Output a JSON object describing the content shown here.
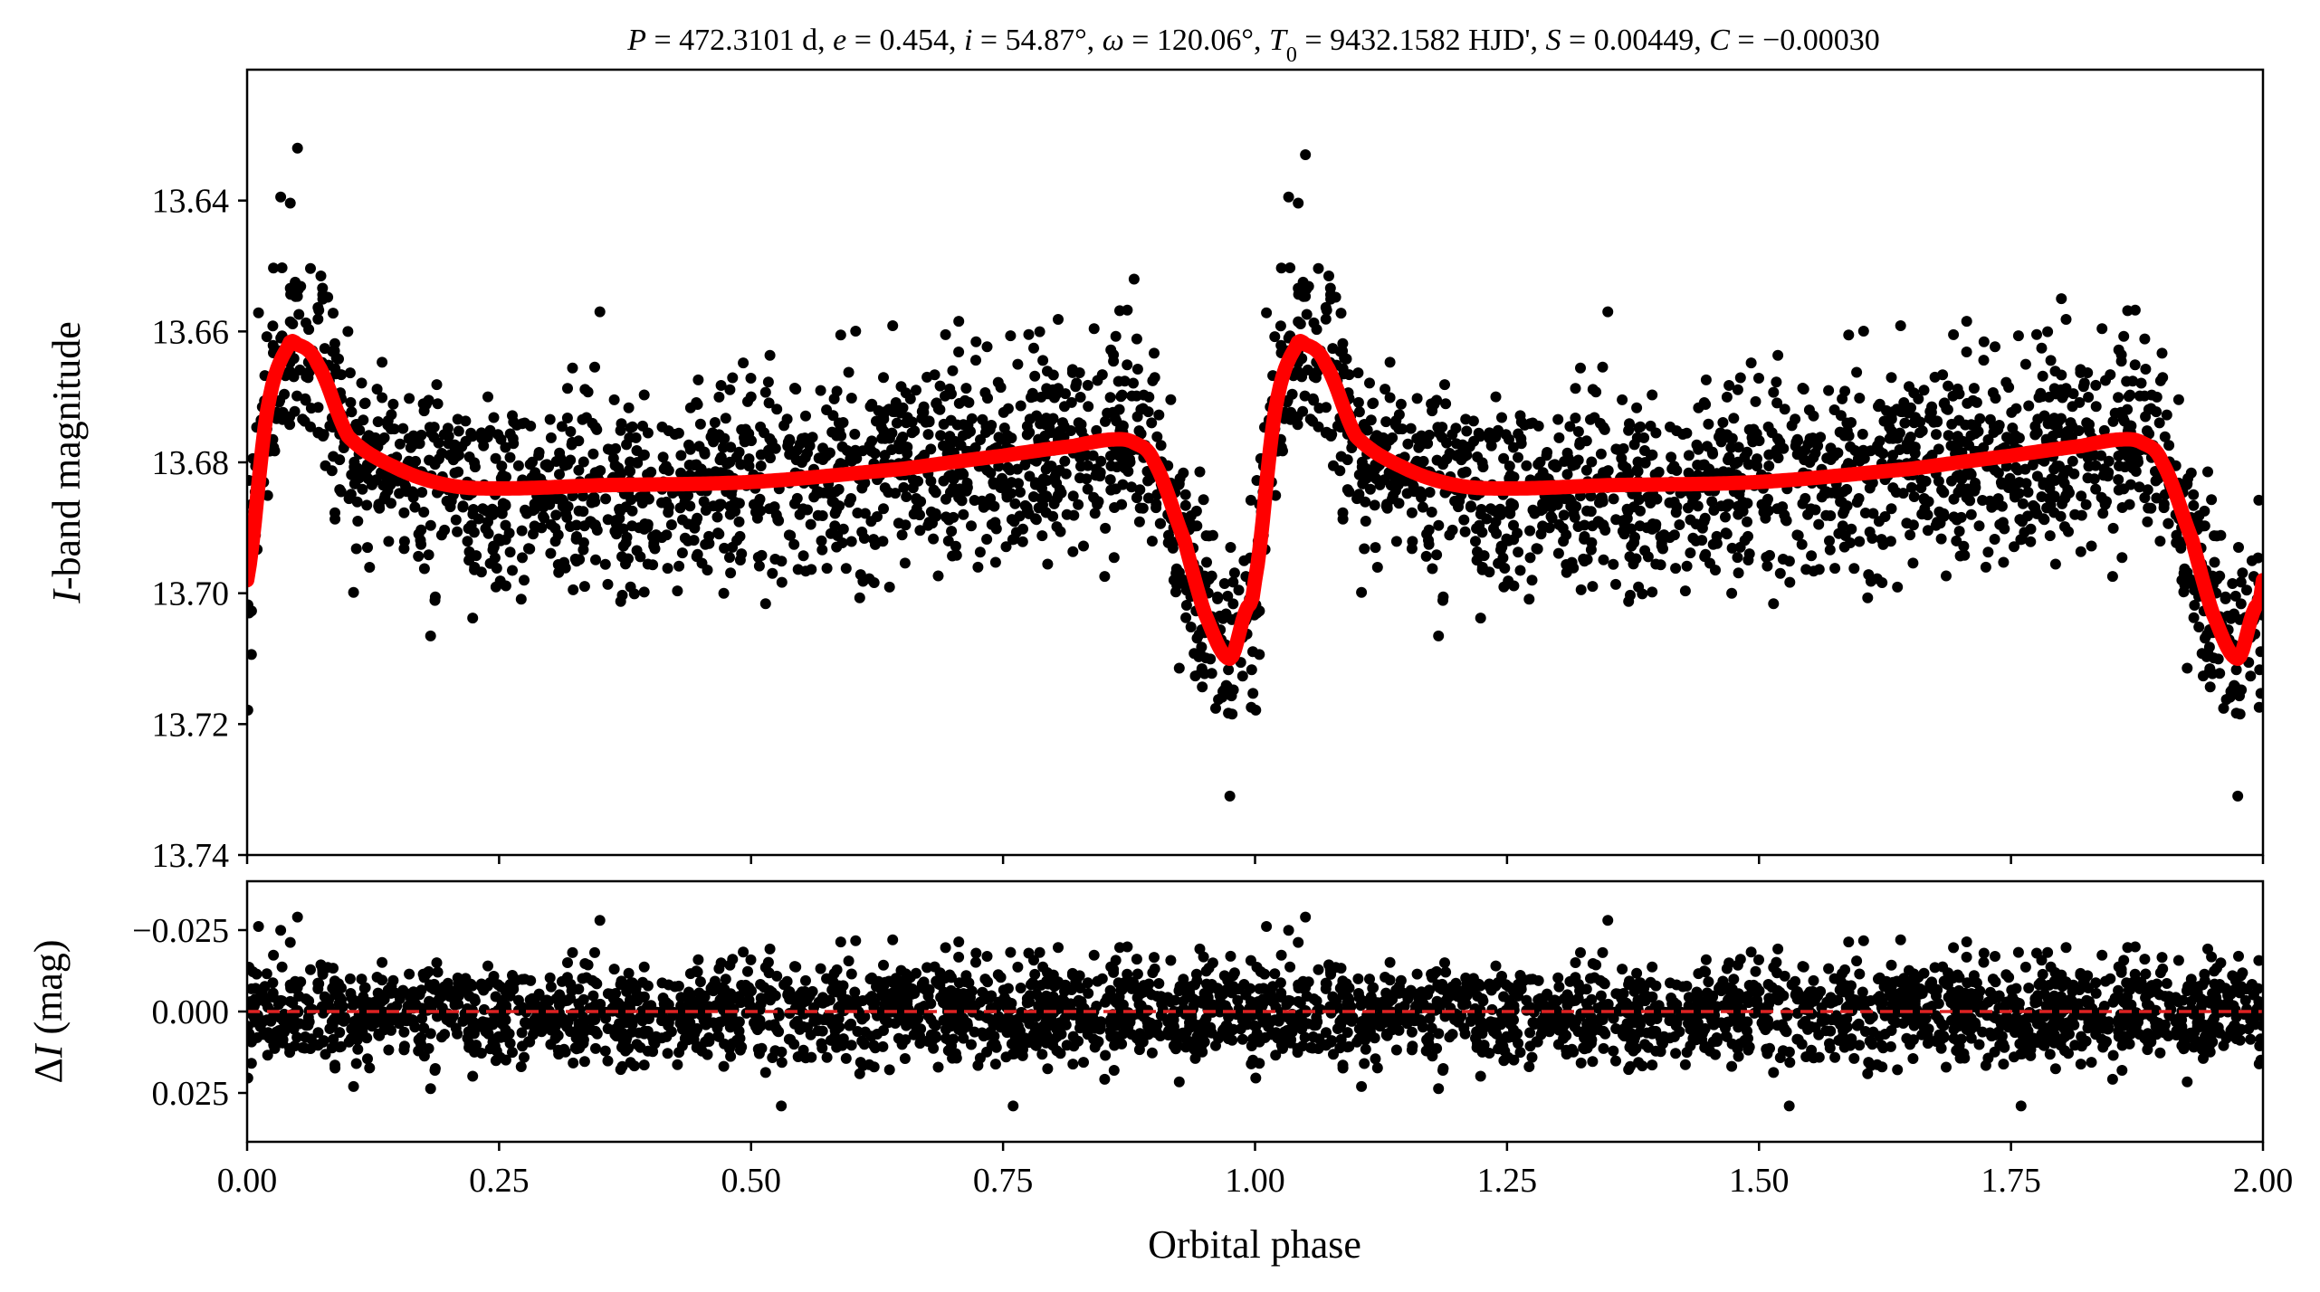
{
  "chart_data": [
    {
      "type": "scatter",
      "panel": "top",
      "title": "P = 472.3101 d, e = 0.454, i = 54.87°, ω = 120.06°, T₀ = 9432.1582 HJD', S = 0.00449, C = −0.00030",
      "title_parts": {
        "p_sym": "P",
        "p_val": " = 472.3101 d, ",
        "e_sym": "e",
        "e_val": " = 0.454, ",
        "i_sym": "i",
        "i_val": " = 54.87°, ",
        "w_sym": "ω",
        "w_val": " = 120.06°, ",
        "t_sym": "T",
        "t_sub": "0",
        "t_val": " = 9432.1582 HJD', ",
        "s_sym": "S",
        "s_val": " = 0.00449, ",
        "c_sym": "C",
        "c_val": " = −0.00030"
      },
      "xlabel": "Orbital phase",
      "ylabel": "I-band magnitude",
      "ylabel_parts": {
        "sym": "I",
        "rest": "-band magnitude"
      },
      "xlim": [
        0.0,
        2.0
      ],
      "ylim": [
        13.74,
        13.62
      ],
      "y_inverted": true,
      "xticks": [
        0.0,
        0.25,
        0.5,
        0.75,
        1.0,
        1.25,
        1.5,
        1.75,
        2.0
      ],
      "yticks": [
        "13.64",
        "13.66",
        "13.68",
        "13.70",
        "13.72",
        "13.74"
      ],
      "yticks_values": [
        13.64,
        13.66,
        13.68,
        13.7,
        13.72,
        13.74
      ],
      "grid": false,
      "series": [
        {
          "kind": "observations",
          "color": "#000000",
          "marker": "circle",
          "note": "dense cloud of several thousand points; scatter sigma approx 0.008 mag",
          "x": [
            0.05,
            0.1,
            0.2,
            0.35,
            0.5,
            0.7,
            0.88,
            0.975,
            1.05,
            1.2,
            1.35,
            1.55,
            1.8,
            1.975
          ],
          "y": [
            13.632,
            13.66,
            13.676,
            13.657,
            13.67,
            13.666,
            13.652,
            13.731,
            13.633,
            13.679,
            13.657,
            13.672,
            13.655,
            13.731
          ]
        },
        {
          "kind": "model",
          "color": "#ff0000",
          "line_style": "solid",
          "x": [
            0.0,
            0.02,
            0.04,
            0.05,
            0.07,
            0.1,
            0.15,
            0.2,
            0.25,
            0.35,
            0.5,
            0.65,
            0.75,
            0.82,
            0.86,
            0.88,
            0.9,
            0.93,
            0.95,
            0.975,
            0.99,
            1.0
          ],
          "y": [
            13.698,
            13.672,
            13.6625,
            13.662,
            13.665,
            13.676,
            13.681,
            13.6835,
            13.684,
            13.6835,
            13.683,
            13.681,
            13.679,
            13.6775,
            13.6765,
            13.677,
            13.68,
            13.692,
            13.703,
            13.71,
            13.703,
            13.698
          ],
          "periodic_in_phase": true
        }
      ]
    },
    {
      "type": "scatter",
      "panel": "bottom",
      "xlabel": "Orbital phase",
      "ylabel": "ΔI (mag)",
      "ylabel_parts": {
        "delta": "Δ",
        "sym": "I",
        "rest": " (mag)"
      },
      "xlim": [
        0.0,
        2.0
      ],
      "ylim": [
        0.04,
        -0.04
      ],
      "y_inverted": true,
      "xticks": [
        "0.00",
        "0.25",
        "0.50",
        "0.75",
        "1.00",
        "1.25",
        "1.50",
        "1.75",
        "2.00"
      ],
      "xticks_values": [
        0.0,
        0.25,
        0.5,
        0.75,
        1.0,
        1.25,
        1.5,
        1.75,
        2.0
      ],
      "yticks": [
        "−0.025",
        "0.000",
        "0.025"
      ],
      "yticks_values": [
        -0.025,
        0.0,
        0.025
      ],
      "grid": false,
      "series": [
        {
          "kind": "residuals",
          "color": "#000000",
          "marker": "circle",
          "note": "residual scatter sigma approx 0.008 mag around zero",
          "x": [
            0.05,
            0.35,
            0.53,
            0.76,
            1.05,
            1.35,
            1.53,
            1.76
          ],
          "y": [
            -0.029,
            -0.028,
            0.029,
            0.029,
            -0.029,
            -0.028,
            0.029,
            0.029
          ]
        },
        {
          "kind": "zero-line",
          "color": "#dd2222",
          "line_style": "dashed",
          "y": 0.0
        }
      ]
    }
  ]
}
